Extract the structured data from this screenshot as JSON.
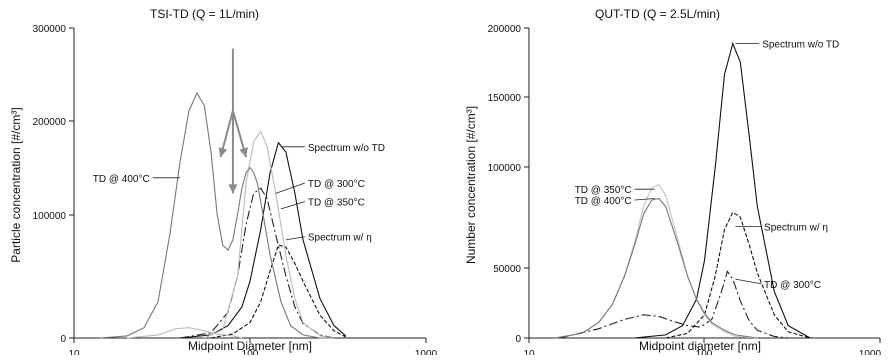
{
  "chart_data": [
    {
      "type": "line",
      "title": "TSI-TD (Q = 1L/min)",
      "xlabel": "Midpoint Diameter [nm]",
      "ylabel": "Particle concentration [#/cm³]",
      "xscale": "log",
      "xlim": [
        10,
        1000
      ],
      "ylim": [
        0,
        300000
      ],
      "xticks": [
        "10",
        "100",
        "1000"
      ],
      "yticks": [
        "0",
        "100000",
        "200000",
        "300000"
      ],
      "grid": false,
      "series": [
        {
          "name": "Spectrum w/o TD",
          "color": "#111111",
          "dash": "solid",
          "x": [
            40,
            60,
            75,
            90,
            100,
            115,
            130,
            145,
            160,
            180,
            200,
            250,
            300,
            350
          ],
          "y": [
            0,
            3000,
            12000,
            30000,
            55000,
            105000,
            160000,
            189000,
            180000,
            140000,
            95000,
            38000,
            12000,
            2000
          ]
        },
        {
          "name": "Spectrum w/ η",
          "color": "#111111",
          "dash": "4,2",
          "x": [
            60,
            80,
            100,
            115,
            130,
            145,
            160,
            180,
            200,
            250,
            300,
            350
          ],
          "y": [
            0,
            4000,
            15000,
            35000,
            65000,
            90000,
            88000,
            72000,
            55000,
            22000,
            7000,
            1000
          ]
        },
        {
          "name": "TD @ 300°C",
          "color": "#222222",
          "dash": "9,3,2,3",
          "x": [
            40,
            60,
            75,
            85,
            95,
            105,
            115,
            125,
            140,
            160,
            180,
            200,
            250,
            300
          ],
          "y": [
            0,
            5000,
            25000,
            60000,
            110000,
            140000,
            145000,
            135000,
            100000,
            60000,
            30000,
            14000,
            3000,
            0
          ]
        },
        {
          "name": "TD @ 350°C",
          "color": "#bbbbbb",
          "dash": "solid",
          "x": [
            55,
            70,
            85,
            95,
            105,
            115,
            125,
            140,
            160,
            180,
            200,
            250,
            300
          ],
          "y": [
            0,
            8000,
            60000,
            150000,
            190000,
            200000,
            185000,
            140000,
            80000,
            38000,
            15000,
            2000,
            0
          ]
        },
        {
          "name": "TD @ 400°C",
          "color": "#777777",
          "dash": "solid",
          "x": [
            14,
            20,
            25,
            30,
            35,
            40,
            45,
            50,
            55,
            60,
            65,
            70,
            75,
            80,
            85,
            90,
            95,
            100,
            105,
            110,
            120,
            130,
            150,
            170,
            200,
            250,
            300
          ],
          "y": [
            0,
            2000,
            10000,
            35000,
            100000,
            170000,
            220000,
            237000,
            225000,
            180000,
            120000,
            90000,
            85000,
            95000,
            120000,
            145000,
            160000,
            165000,
            160000,
            150000,
            115000,
            80000,
            35000,
            12000,
            3000,
            0,
            0
          ]
        },
        {
          "name": "",
          "color": "#bbbbbb",
          "dash": "solid",
          "x": [
            20,
            30,
            38,
            45,
            55,
            65,
            80,
            90
          ],
          "y": [
            0,
            3000,
            9000,
            10000,
            7000,
            4000,
            2000,
            0
          ]
        }
      ],
      "labels": [
        {
          "text": "Spectrum w/o TD",
          "x": 150,
          "y": 185000,
          "lx": 205,
          "ly": 185000
        },
        {
          "text": "TD @ 300°C",
          "x": 140,
          "y": 140000,
          "lx": 205,
          "ly": 150000
        },
        {
          "text": "TD @ 350°C",
          "x": 150,
          "y": 125000,
          "lx": 205,
          "ly": 132000
        },
        {
          "text": "Spectrum w/ η",
          "x": 160,
          "y": 95000,
          "lx": 205,
          "ly": 98000
        },
        {
          "text": "TD @ 400°C",
          "x": 40,
          "y": 155000,
          "lx": 28,
          "ly": 155000
        }
      ],
      "arrows": [
        {
          "x1": 80,
          "y1": 280000,
          "x2": 80,
          "y2": 140000
        },
        {
          "x1": 80,
          "y1": 220000,
          "x2": 68,
          "y2": 175000
        },
        {
          "x1": 80,
          "y1": 220000,
          "x2": 95,
          "y2": 175000
        }
      ]
    },
    {
      "type": "line",
      "title": "QUT-TD (Q = 2.5L/min)",
      "xlabel": "Midpoint diameter [nm]",
      "ylabel": "Number concentration [#/cm³]",
      "xscale": "log",
      "xlim": [
        10,
        1000
      ],
      "ylim": [
        0,
        200000
      ],
      "xticks": [
        "10",
        "100",
        "1000"
      ],
      "yticks": [
        "0",
        "50000",
        "100000",
        "150000",
        "200000"
      ],
      "grid": false,
      "series": [
        {
          "name": "Spectrum w/o TD",
          "color": "#111111",
          "dash": "solid",
          "x": [
            40,
            60,
            75,
            90,
            100,
            115,
            130,
            145,
            160,
            180,
            200,
            250,
            300,
            400
          ],
          "y": [
            0,
            2000,
            8000,
            25000,
            50000,
            110000,
            170000,
            190000,
            178000,
            130000,
            85000,
            30000,
            8000,
            0
          ]
        },
        {
          "name": "Spectrum w/ η",
          "color": "#111111",
          "dash": "4,2",
          "x": [
            60,
            80,
            100,
            115,
            130,
            145,
            160,
            180,
            200,
            250,
            300,
            400
          ],
          "y": [
            0,
            3000,
            15000,
            40000,
            70000,
            81000,
            78000,
            60000,
            42000,
            15000,
            4000,
            0
          ]
        },
        {
          "name": "TD @ 300°C",
          "color": "#222222",
          "dash": "9,3,2,3",
          "x": [
            15,
            25,
            35,
            45,
            55,
            65,
            80,
            95,
            110,
            125,
            135,
            145,
            160,
            180,
            200,
            250,
            300
          ],
          "y": [
            0,
            6000,
            12000,
            15000,
            14000,
            11000,
            8000,
            7000,
            12000,
            30000,
            43000,
            38000,
            24000,
            11000,
            5000,
            1000,
            0
          ]
        },
        {
          "name": "TD @ 350°C",
          "color": "#c4c4c4",
          "dash": "solid",
          "x": [
            14,
            20,
            25,
            30,
            35,
            40,
            45,
            50,
            55,
            60,
            70,
            80,
            90,
            100,
            110,
            130,
            150,
            200
          ],
          "y": [
            0,
            3000,
            10000,
            22000,
            40000,
            62000,
            85000,
            97000,
            99000,
            92000,
            65000,
            40000,
            25000,
            15000,
            9000,
            4000,
            1000,
            0
          ]
        },
        {
          "name": "TD @ 400°C",
          "color": "#777777",
          "dash": "solid",
          "x": [
            14,
            20,
            25,
            30,
            35,
            40,
            45,
            50,
            55,
            60,
            70,
            80,
            90,
            100,
            110,
            130,
            150,
            200
          ],
          "y": [
            0,
            3000,
            10000,
            22000,
            40000,
            60000,
            80000,
            89000,
            90000,
            85000,
            62000,
            40000,
            25000,
            16000,
            10000,
            5000,
            2000,
            0
          ]
        }
      ],
      "labels": [
        {
          "text": "Spectrum w/o TD",
          "x": 150,
          "y": 190000,
          "lx": 205,
          "ly": 190000
        },
        {
          "text": "TD @ 350°C",
          "x": 52,
          "y": 96000,
          "lx": 40,
          "ly": 96000
        },
        {
          "text": "TD @ 400°C",
          "x": 52,
          "y": 90000,
          "lx": 40,
          "ly": 89000
        },
        {
          "text": "Spectrum w/ η",
          "x": 150,
          "y": 72000,
          "lx": 210,
          "ly": 72000
        },
        {
          "text": "TD @ 300°C",
          "x": 150,
          "y": 38000,
          "lx": 210,
          "ly": 35000
        }
      ]
    }
  ]
}
